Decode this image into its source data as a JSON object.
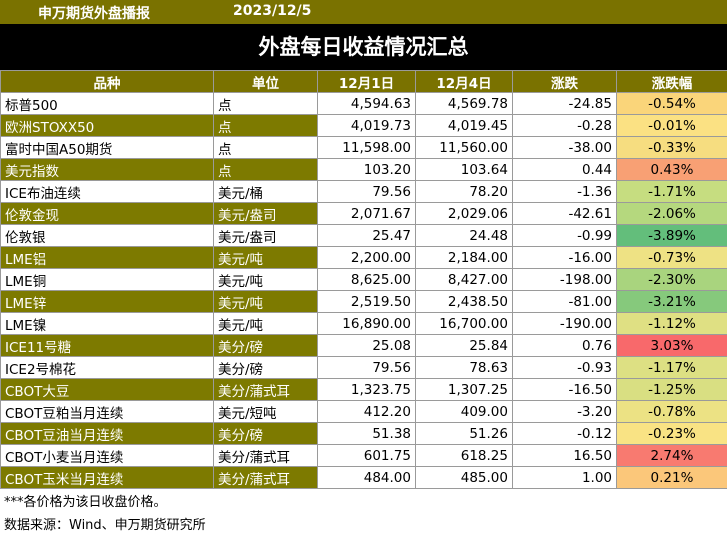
{
  "header": {
    "brand": "申万期货外盘播报",
    "date": "2023/12/5"
  },
  "title": "外盘每日收益情况汇总",
  "columns": [
    "品种",
    "单位",
    "12月1日",
    "12月4日",
    "涨跌",
    "涨跌幅"
  ],
  "rows": [
    {
      "name": "标普500",
      "unit": "点",
      "prev": "4,594.63",
      "curr": "4,569.78",
      "chg": "-24.85",
      "pct": "-0.54%",
      "pct_color": "#fad57a"
    },
    {
      "name": "欧洲STOXX50",
      "unit": "点",
      "prev": "4,019.73",
      "curr": "4,019.45",
      "chg": "-0.28",
      "pct": "-0.01%",
      "pct_color": "#fbe183"
    },
    {
      "name": "富时中国A50期货",
      "unit": "点",
      "prev": "11,598.00",
      "curr": "11,560.00",
      "chg": "-38.00",
      "pct": "-0.33%",
      "pct_color": "#f6dd80"
    },
    {
      "name": "美元指数",
      "unit": "点",
      "prev": "103.20",
      "curr": "103.64",
      "chg": "0.44",
      "pct": "0.43%",
      "pct_color": "#f8a074"
    },
    {
      "name": "ICE布油连续",
      "unit": "美元/桶",
      "prev": "79.56",
      "curr": "78.20",
      "chg": "-1.36",
      "pct": "-1.71%",
      "pct_color": "#c6dd80"
    },
    {
      "name": "伦敦金现",
      "unit": "美元/盎司",
      "prev": "2,071.67",
      "curr": "2,029.06",
      "chg": "-42.61",
      "pct": "-2.06%",
      "pct_color": "#b5d87e"
    },
    {
      "name": "伦敦银",
      "unit": "美元/盎司",
      "prev": "25.47",
      "curr": "24.48",
      "chg": "-0.99",
      "pct": "-3.89%",
      "pct_color": "#63be7b"
    },
    {
      "name": "LME铝",
      "unit": "美元/吨",
      "prev": "2,200.00",
      "curr": "2,184.00",
      "chg": "-16.00",
      "pct": "-0.73%",
      "pct_color": "#eee284"
    },
    {
      "name": "LME铜",
      "unit": "美元/吨",
      "prev": "8,625.00",
      "curr": "8,427.00",
      "chg": "-198.00",
      "pct": "-2.30%",
      "pct_color": "#a9d47e"
    },
    {
      "name": "LME锌",
      "unit": "美元/吨",
      "prev": "2,519.50",
      "curr": "2,438.50",
      "chg": "-81.00",
      "pct": "-3.21%",
      "pct_color": "#86c97c"
    },
    {
      "name": "LME镍",
      "unit": "美元/吨",
      "prev": "16,890.00",
      "curr": "16,700.00",
      "chg": "-190.00",
      "pct": "-1.12%",
      "pct_color": "#dfe083"
    },
    {
      "name": "ICE11号糖",
      "unit": "美分/磅",
      "prev": "25.08",
      "curr": "25.84",
      "chg": "0.76",
      "pct": "3.03%",
      "pct_color": "#f8696b"
    },
    {
      "name": "ICE2号棉花",
      "unit": "美分/磅",
      "prev": "79.56",
      "curr": "78.63",
      "chg": "-0.93",
      "pct": "-1.17%",
      "pct_color": "#dde083"
    },
    {
      "name": "CBOT大豆",
      "unit": "美分/蒲式耳",
      "prev": "1,323.75",
      "curr": "1,307.25",
      "chg": "-16.50",
      "pct": "-1.25%",
      "pct_color": "#d9df82"
    },
    {
      "name": "CBOT豆粕当月连续",
      "unit": "美元/短吨",
      "prev": "412.20",
      "curr": "409.00",
      "chg": "-3.20",
      "pct": "-0.78%",
      "pct_color": "#ece284"
    },
    {
      "name": "CBOT豆油当月连续",
      "unit": "美分/磅",
      "prev": "51.38",
      "curr": "51.26",
      "chg": "-0.12",
      "pct": "-0.23%",
      "pct_color": "#f9e384"
    },
    {
      "name": "CBOT小麦当月连续",
      "unit": "美分/蒲式耳",
      "prev": "601.75",
      "curr": "618.25",
      "chg": "16.50",
      "pct": "2.74%",
      "pct_color": "#f87a70"
    },
    {
      "name": "CBOT玉米当月连续",
      "unit": "美分/蒲式耳",
      "prev": "484.00",
      "curr": "485.00",
      "chg": "1.00",
      "pct": "0.21%",
      "pct_color": "#fbc77a"
    }
  ],
  "notes": {
    "note": "***各价格为该日收盘价格。",
    "source": "数据来源：Wind、申万期货研究所"
  }
}
